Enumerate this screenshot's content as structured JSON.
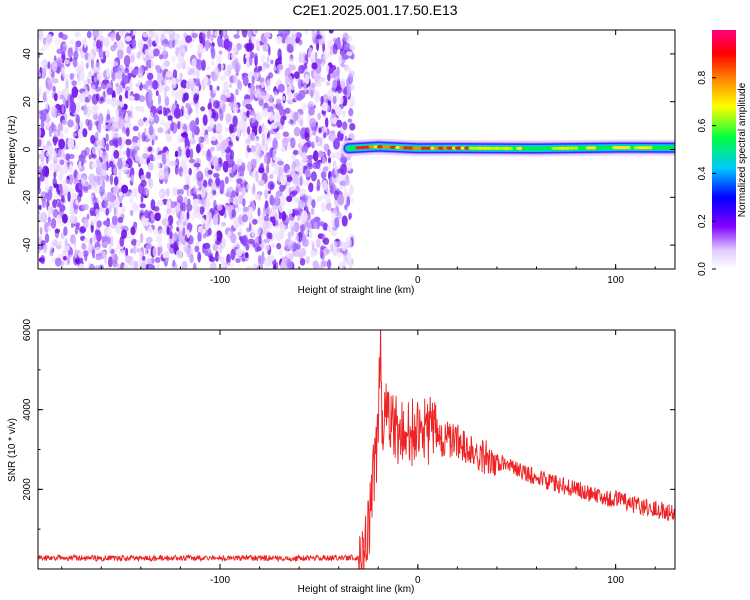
{
  "figure": {
    "title": "C2E1.2025.001.17.50.E13"
  },
  "chart_data": [
    {
      "type": "heatmap",
      "xlabel": "Height of straight line (km)",
      "ylabel": "Frequency (Hz)",
      "xlim": [
        -192,
        130
      ],
      "ylim": [
        -50,
        50
      ],
      "x_ticks": [
        -100,
        0,
        100
      ],
      "x_tick_labels": [
        "-100",
        "0",
        "100"
      ],
      "y_ticks": [
        -40,
        -20,
        0,
        20,
        40
      ],
      "y_tick_labels": [
        "-40",
        "-20",
        "0",
        "20",
        "40"
      ],
      "noise_region": {
        "x_range": [
          -192,
          -35
        ],
        "y_range": [
          -50,
          50
        ],
        "description_color": "#7a2cf0"
      },
      "signal_band": {
        "x_range": [
          -35,
          130
        ],
        "center_frequency": [
          [
            -35,
            0.5
          ],
          [
            -20,
            1.2
          ],
          [
            0,
            0.5
          ],
          [
            20,
            0.6
          ],
          [
            60,
            0.4
          ],
          [
            100,
            0.8
          ],
          [
            130,
            0.7
          ]
        ],
        "width_hz": 3
      },
      "colorbar": {
        "label": "Normalized spectral amplitude",
        "range": [
          0,
          1
        ],
        "ticks": [
          0.0,
          0.2,
          0.4,
          0.6,
          0.8
        ],
        "tick_labels": [
          "0.0",
          "0.2",
          "0.4",
          "0.6",
          "0.8"
        ],
        "colors": [
          "#ffffff",
          "#8000ff",
          "#0000ff",
          "#00c8ff",
          "#00ff00",
          "#ffff00",
          "#ff8000",
          "#ff0000",
          "#ff0080"
        ]
      }
    },
    {
      "type": "line",
      "xlabel": "Height of straight line (km)",
      "ylabel": "SNR (10 * v/v)",
      "xlim": [
        -192,
        130
      ],
      "ylim": [
        0,
        6000
      ],
      "x_ticks": [
        -100,
        0,
        100
      ],
      "x_tick_labels": [
        "-100",
        "0",
        "100"
      ],
      "y_ticks": [
        2000,
        4000,
        6000
      ],
      "y_tick_labels": [
        "2000",
        "4000",
        "6000"
      ],
      "color": "#ee2222",
      "series": [
        {
          "x": [
            -192,
            -150,
            -100,
            -60,
            -40,
            -30,
            -26,
            -24,
            -22,
            -20,
            -19,
            -18,
            -16,
            -14,
            -10,
            -5,
            0,
            5,
            10,
            20,
            30,
            40,
            50,
            60,
            70,
            80,
            90,
            100,
            110,
            120,
            130
          ],
          "y": [
            250,
            240,
            250,
            240,
            250,
            260,
            600,
            1500,
            2500,
            3500,
            6000,
            3600,
            3800,
            3600,
            3400,
            3500,
            3400,
            3500,
            3300,
            3200,
            2900,
            2700,
            2500,
            2300,
            2150,
            2000,
            1850,
            1750,
            1600,
            1500,
            1400
          ]
        }
      ]
    }
  ]
}
